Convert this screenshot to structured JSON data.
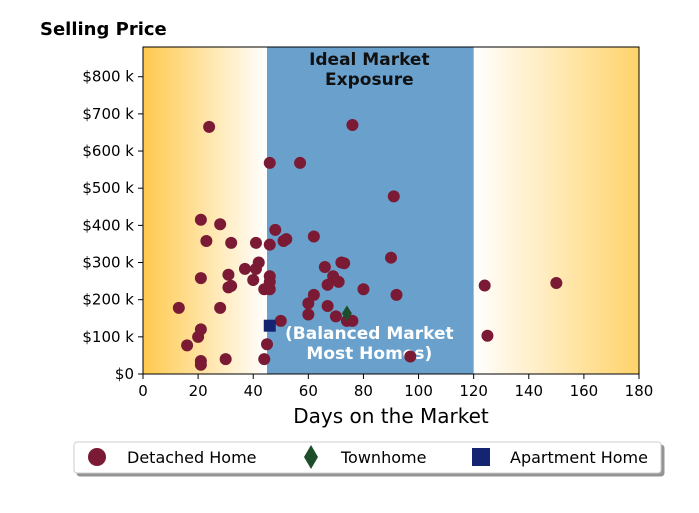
{
  "chart_data": {
    "type": "scatter",
    "title": "Selling Price",
    "xlabel": "Days on the Market",
    "ylabel": "",
    "xlim": [
      0,
      180
    ],
    "ylim": [
      0,
      880000
    ],
    "x_ticks": [
      0,
      20,
      40,
      60,
      80,
      100,
      120,
      140,
      160,
      180
    ],
    "y_ticks": [
      0,
      100000,
      200000,
      300000,
      400000,
      500000,
      600000,
      700000,
      800000
    ],
    "y_tick_labels": [
      "$0",
      "$100 k",
      "$200 k",
      "$300 k",
      "$400 k",
      "$500 k",
      "$600 k",
      "$700 k",
      "$800 k"
    ],
    "grid": false,
    "legend_position": "bottom",
    "zones": [
      {
        "label": "Ideal Market Exposure",
        "x_from": 45,
        "x_to": 120,
        "color": "#6aa0cc"
      },
      {
        "label": "(Balanced Market Most Homes)",
        "x_from": 45,
        "x_to": 120,
        "color": "#6aa0cc"
      }
    ],
    "zone_label_lines": {
      "ideal": [
        "Ideal Market",
        "Exposure"
      ],
      "balanced": [
        "(Balanced Market",
        "Most Homes)"
      ]
    },
    "series": [
      {
        "name": "Detached Home",
        "marker": "circle",
        "color": "#7a1a35",
        "points": [
          [
            13,
            178000
          ],
          [
            16,
            77000
          ],
          [
            20,
            100000
          ],
          [
            21,
            120000
          ],
          [
            21,
            35000
          ],
          [
            21,
            25000
          ],
          [
            21,
            258000
          ],
          [
            21,
            415000
          ],
          [
            23,
            358000
          ],
          [
            24,
            665000
          ],
          [
            28,
            403000
          ],
          [
            28,
            178000
          ],
          [
            30,
            40000
          ],
          [
            31,
            233000
          ],
          [
            31,
            267000
          ],
          [
            32,
            237000
          ],
          [
            32,
            353000
          ],
          [
            37,
            283000
          ],
          [
            40,
            253000
          ],
          [
            41,
            353000
          ],
          [
            41,
            283000
          ],
          [
            42,
            300000
          ],
          [
            44,
            40000
          ],
          [
            44,
            228000
          ],
          [
            45,
            80000
          ],
          [
            46,
            228000
          ],
          [
            46,
            263000
          ],
          [
            46,
            248000
          ],
          [
            46,
            348000
          ],
          [
            46,
            568000
          ],
          [
            48,
            388000
          ],
          [
            50,
            143000
          ],
          [
            51,
            358000
          ],
          [
            52,
            363000
          ],
          [
            57,
            568000
          ],
          [
            60,
            160000
          ],
          [
            60,
            190000
          ],
          [
            62,
            213000
          ],
          [
            62,
            370000
          ],
          [
            66,
            288000
          ],
          [
            67,
            240000
          ],
          [
            67,
            183000
          ],
          [
            69,
            263000
          ],
          [
            70,
            155000
          ],
          [
            71,
            248000
          ],
          [
            72,
            300000
          ],
          [
            73,
            298000
          ],
          [
            74,
            143000
          ],
          [
            76,
            143000
          ],
          [
            76,
            670000
          ],
          [
            80,
            228000
          ],
          [
            90,
            313000
          ],
          [
            91,
            478000
          ],
          [
            92,
            213000
          ],
          [
            97,
            47000
          ],
          [
            124,
            238000
          ],
          [
            125,
            103000
          ],
          [
            150,
            245000
          ]
        ]
      },
      {
        "name": "Townhome",
        "marker": "diamond",
        "color": "#1e4d2b",
        "points": [
          [
            74,
            163000
          ]
        ]
      },
      {
        "name": "Apartment Home",
        "marker": "square",
        "color": "#142470",
        "points": [
          [
            46,
            130000
          ]
        ]
      }
    ]
  }
}
